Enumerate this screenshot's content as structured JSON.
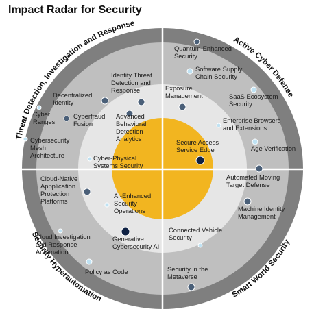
{
  "title": "Impact Radar for Security",
  "colors": {
    "outer_ring": "#7f7f7f",
    "middle_ring": "#bfbfbf",
    "inner_ring": "#e6e6e6",
    "center": "#f2b520",
    "divider": "#ffffff",
    "text": "#1a1a1a",
    "dot_light": "#bfe2f3",
    "dot_mid": "#4a5f78",
    "dot_dark": "#0f2244"
  },
  "themes": [
    {
      "id": "threat",
      "label": "Threat Detection, Investigation and Response"
    },
    {
      "id": "active",
      "label": "Active Cyber Defense"
    },
    {
      "id": "hyper",
      "label": "Security Hyperautomation"
    },
    {
      "id": "smart",
      "label": "Smart World Security"
    }
  ],
  "technologies": [
    {
      "name": "Quantum-Enhanced Security",
      "lines": [
        "Quantum-Enhanced",
        "Security"
      ],
      "dot": "mid"
    },
    {
      "name": "Software Supply Chain Security",
      "lines": [
        "Software Supply",
        "Chain Security"
      ],
      "dot": "light"
    },
    {
      "name": "Exposure Management",
      "lines": [
        "Exposure",
        "Management"
      ],
      "dot": "mid"
    },
    {
      "name": "SaaS Ecosystem Security",
      "lines": [
        "SaaS Ecosystem",
        "Security"
      ],
      "dot": "light"
    },
    {
      "name": "Enterprise Browsers and Extensions",
      "lines": [
        "Enterprise Browsers",
        "and Extensions"
      ],
      "dot": "light"
    },
    {
      "name": "Age Verification",
      "lines": [
        "Age Verification"
      ],
      "dot": "light"
    },
    {
      "name": "Secure Access Service Edge",
      "lines": [
        "Secure Access",
        "Service Edge"
      ],
      "dot": "dark"
    },
    {
      "name": "Identity Threat Detection and Response",
      "lines": [
        "Identity Threat",
        "Detection and",
        "Response"
      ],
      "dot": "mid"
    },
    {
      "name": "Decentralized Identity",
      "lines": [
        "Decentralized",
        "Identity"
      ],
      "dot": "mid"
    },
    {
      "name": "Cyber Ranges",
      "lines": [
        "Cyber",
        "Ranges"
      ],
      "dot": "light"
    },
    {
      "name": "Cyberfraud Fusion",
      "lines": [
        "Cyberfraud",
        "Fusion"
      ],
      "dot": "mid"
    },
    {
      "name": "Cybersecurity Mesh Architecture",
      "lines": [
        "Cybersecurity",
        "Mesh",
        "Architecture"
      ],
      "dot": "light"
    },
    {
      "name": "Advanced Behavioral Detection Analytics",
      "lines": [
        "Advanced",
        "Behavioral",
        "Detection",
        "Analytics"
      ],
      "dot": "mid"
    },
    {
      "name": "Cyber-Physical Systems Security",
      "lines": [
        "Cyber-Physical",
        "Systems Security"
      ],
      "dot": "light"
    },
    {
      "name": "Automated Moving Target Defense",
      "lines": [
        "Automated Moving",
        "Target Defense"
      ],
      "dot": "mid"
    },
    {
      "name": "Machine Identity Management",
      "lines": [
        "Machine Identity",
        "Management"
      ],
      "dot": "mid"
    },
    {
      "name": "Connected Vehicle Security",
      "lines": [
        "Connected Vehicle",
        "Security"
      ],
      "dot": "light"
    },
    {
      "name": "Security in the Metaverse",
      "lines": [
        "Security in the",
        "Metaverse"
      ],
      "dot": "mid"
    },
    {
      "name": "Cloud-Native Application Protection Platforms",
      "lines": [
        "Cloud-Native",
        "Appplication",
        "Protection",
        "Platforms"
      ],
      "dot": "mid"
    },
    {
      "name": "AI-Enhanced Security Operations",
      "lines": [
        "AI-Enhanced",
        "Security",
        "Operations"
      ],
      "dot": "light"
    },
    {
      "name": "Cloud Investigation and Response Automation",
      "lines": [
        "Cloud Investigation",
        "and Response",
        "Automation"
      ],
      "dot": "light"
    },
    {
      "name": "Generative Cybersecurity AI",
      "lines": [
        "Generative",
        "Cybersecurity AI"
      ],
      "dot": "dark"
    },
    {
      "name": "Policy as Code",
      "lines": [
        "Policy as Code"
      ],
      "dot": "light"
    }
  ]
}
